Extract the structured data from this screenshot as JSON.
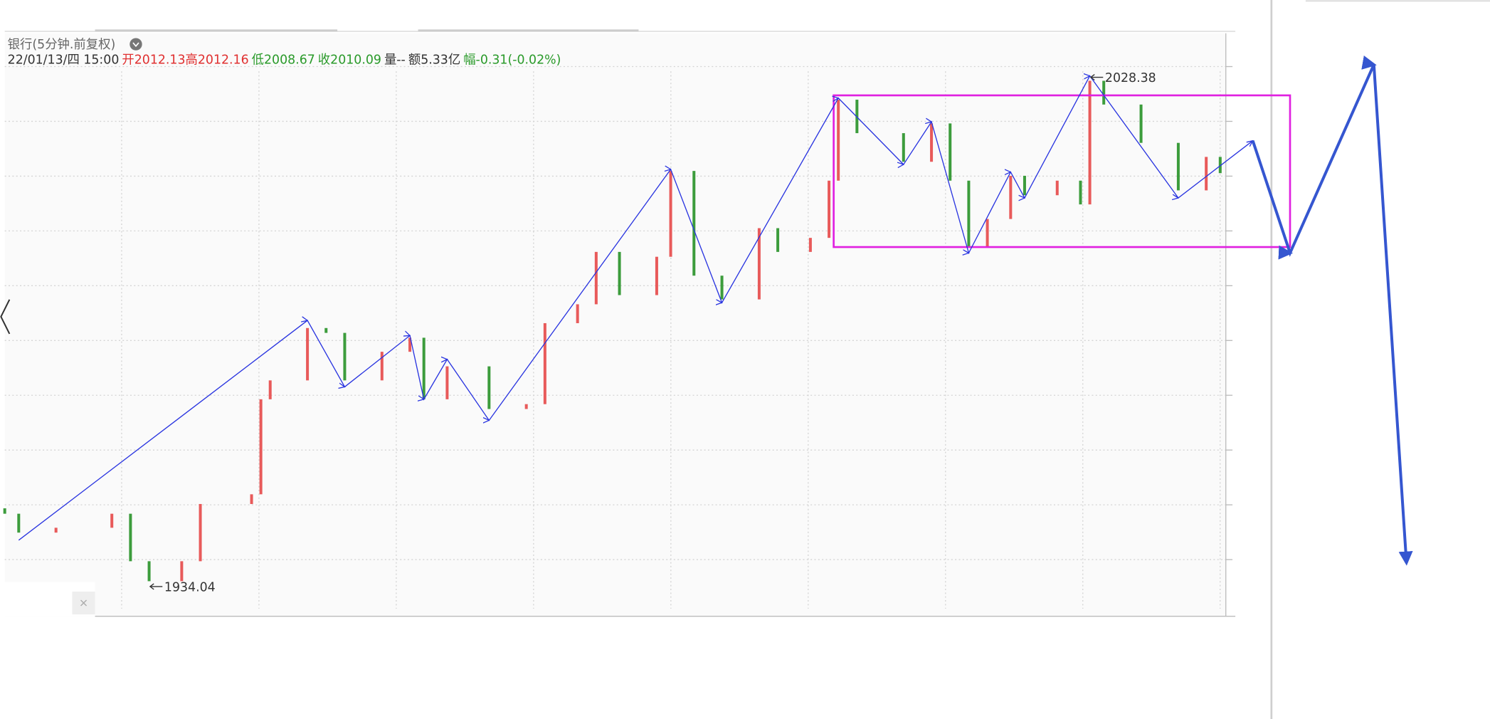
{
  "chart_data": {
    "type": "candlestick",
    "title": "银行(5分钟.前复权)",
    "header": [
      {
        "text": "22/01/13/四 15:00",
        "color": "#333333"
      },
      {
        "text": "开",
        "color": "#e03030"
      },
      {
        "text": "2012.13",
        "color": "#e03030"
      },
      {
        "text": "高",
        "color": "#e03030"
      },
      {
        "text": "2012.16",
        "color": "#e03030"
      },
      {
        "text": "低",
        "color": "#2a9a2a"
      },
      {
        "text": "2008.67",
        "color": "#2a9a2a"
      },
      {
        "text": "收",
        "color": "#2a9a2a"
      },
      {
        "text": "2010.09",
        "color": "#2a9a2a"
      },
      {
        "text": "量--",
        "color": "#333333"
      },
      {
        "text": "额5.33亿",
        "color": "#333333"
      },
      {
        "text": "幅",
        "color": "#2a9a2a"
      },
      {
        "text": "-0.31(-0.02%)",
        "color": "#2a9a2a"
      }
    ],
    "xlim": [
      0,
      302
    ],
    "ylim": [
      1928,
      2036
    ],
    "up_color": "#e85a5a",
    "down_color": "#3c9c3c",
    "candles": {
      "x": [
        0,
        3,
        11,
        23,
        27,
        31,
        38,
        42,
        53,
        55,
        57,
        65,
        69,
        73,
        81,
        87,
        90,
        95,
        104,
        112,
        116,
        123,
        127,
        132,
        140,
        143,
        148,
        154,
        162,
        166,
        173,
        177,
        179,
        183,
        193,
        199,
        203,
        207,
        211,
        216,
        219,
        226,
        231,
        233,
        236,
        244,
        252,
        258,
        261
      ],
      "open": [
        1948.0,
        1947.0,
        1943.5,
        1944.4,
        1947.0,
        1938.2,
        1934.5,
        1938.2,
        1948.8,
        1950.6,
        1968.2,
        1971.7,
        1981.4,
        1980.5,
        1971.7,
        1977.0,
        1979.6,
        1968.2,
        1974.3,
        1966.4,
        1967.3,
        1982.3,
        1985.8,
        1995.5,
        1987.5,
        1994.6,
        2010.5,
        1991.1,
        1986.7,
        1999.9,
        1995.5,
        1998.1,
        2008.7,
        2023.7,
        2017.5,
        2012.2,
        2019.3,
        2008.7,
        1996.4,
        2001.6,
        2009.6,
        2006.0,
        2008.7,
        2004.3,
        2027.2,
        2022.8,
        2015.7,
        2006.9,
        2013.1
      ],
      "close": [
        1947.0,
        1943.5,
        1944.4,
        1947.0,
        1938.2,
        1934.5,
        1938.2,
        1948.8,
        1950.6,
        1968.2,
        1971.7,
        1981.4,
        1980.5,
        1971.7,
        1977.0,
        1979.6,
        1968.2,
        1974.3,
        1966.4,
        1967.3,
        1982.3,
        1985.8,
        1995.5,
        1987.5,
        1994.6,
        2010.5,
        1991.1,
        1986.7,
        1999.9,
        1995.5,
        1998.1,
        2008.7,
        2023.7,
        2017.5,
        2012.2,
        2019.3,
        2008.7,
        1996.4,
        2001.6,
        2009.6,
        2006.0,
        2008.7,
        2004.3,
        2027.2,
        2022.8,
        2015.7,
        2006.9,
        2013.1,
        2010.09
      ]
    },
    "series": [
      {
        "color": "#2a35e0",
        "x": [
          3,
          65,
          73,
          87,
          90,
          95,
          104,
          143,
          154,
          179,
          193,
          199,
          207,
          216,
          219,
          233,
          252,
          268
        ],
        "values": [
          1942.1,
          1982.8,
          1970.5,
          1980.0,
          1968.2,
          1975.6,
          1964.3,
          2010.8,
          1986.1,
          2024.0,
          2011.7,
          2019.6,
          1995.3,
          2010.3,
          2005.5,
          2028.1,
          2005.5,
          2016.1
        ]
      },
      {
        "color": "#3556d0",
        "x": [
          268,
          276,
          294,
          301
        ],
        "values": [
          2016.1,
          1995.3,
          2030.2,
          1937.9
        ]
      }
    ],
    "box": {
      "x": [
        178,
        276
      ],
      "y": [
        1996.4,
        2024.5
      ],
      "color": "#e020e0"
    },
    "annotations": [
      {
        "text": "1934.04",
        "x": 31,
        "y": 1934.04
      },
      {
        "text": "2028.38",
        "x": 233,
        "y": 2028.38
      }
    ]
  }
}
